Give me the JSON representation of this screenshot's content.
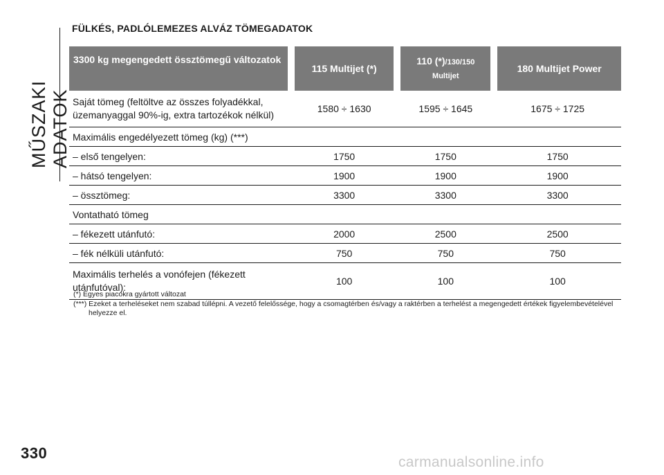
{
  "side_tab": {
    "label": "MŰSZAKI ADATOK"
  },
  "section": {
    "title": "FÜLKÉS, PADLÓLEMEZES ALVÁZ TÖMEGADATOK"
  },
  "table": {
    "headers": [
      {
        "main": "3300 kg megengedett össztömegű változatok",
        "sub": ""
      },
      {
        "main": "115 Multijet (*)",
        "sub": ""
      },
      {
        "main": "110 (*)",
        "suffix": "/130/150",
        "sub": "Multijet"
      },
      {
        "main": "180 Multijet Power",
        "sub": ""
      }
    ],
    "rows": [
      {
        "label_line1": "Saját tömeg (feltöltve az összes folyadékkal,",
        "label_line2": "üzemanyaggal 90%-ig, extra tartozékok nélkül)",
        "values": [
          "1580 ÷ 1630",
          "1595 ÷ 1645",
          "1675 ÷ 1725"
        ]
      },
      {
        "label_line1": "Maximális engedélyezett tömeg (kg) (***)",
        "values": [
          "",
          "",
          ""
        ]
      },
      {
        "label_line1": "– első tengelyen:",
        "values": [
          "1750",
          "1750",
          "1750"
        ]
      },
      {
        "label_line1": "– hátsó tengelyen:",
        "values": [
          "1900",
          "1900",
          "1900"
        ]
      },
      {
        "label_line1": "– össztömeg:",
        "values": [
          "3300",
          "3300",
          "3300"
        ]
      },
      {
        "label_line1": "Vontatható tömeg",
        "values": [
          "",
          "",
          ""
        ]
      },
      {
        "label_line1": "– fékezett utánfutó:",
        "values": [
          "2000",
          "2500",
          "2500"
        ]
      },
      {
        "label_line1": "– fék nélküli utánfutó:",
        "values": [
          "750",
          "750",
          "750"
        ]
      },
      {
        "label_line1": "Maximális terhelés a vonófejen (fékezett",
        "label_line2": "utánfutóval):",
        "values": [
          "100",
          "100",
          "100"
        ]
      }
    ]
  },
  "footnotes": [
    "(*) Egyes piacokra gyártott változat",
    "(***) Ezeket a terheléseket nem szabad túllépni. A vezető felelőssége, hogy a csomagtérben és/vagy a raktérben a terhelést a megengedett értékek figyelembevételével helyezze el."
  ],
  "page_number": "330",
  "watermark": "carmanualsonline.info"
}
